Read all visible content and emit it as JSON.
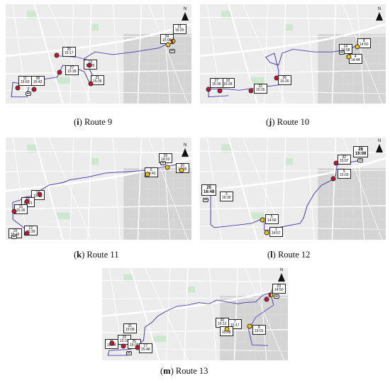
{
  "colors": {
    "route": "#4a3ab3",
    "red_stop": "#c8102e",
    "yellow_stop": "#f2c400",
    "map_bg": "#ececec",
    "road": "#ffffff",
    "dense": "#d3d3d3",
    "green": "#cde8cf"
  },
  "north_label": "N",
  "panels": [
    {
      "id": "route9",
      "caption_letter": "i",
      "caption_text": "Route 9",
      "labels": [
        {
          "id": "a",
          "line1": "21",
          "line2": "15:25",
          "big": false
        },
        {
          "id": "b",
          "line1": "24",
          "line2": "15:08",
          "big": false
        },
        {
          "id": "c",
          "line1": "25",
          "line2": "15:17",
          "big": false
        },
        {
          "id": "d",
          "line1": "13",
          "line2": "15:29",
          "big": false
        },
        {
          "id": "e",
          "line1": "27",
          "line2": "15:39",
          "big": false
        },
        {
          "id": "f",
          "line1": "21",
          "line2": "15:35",
          "big": false
        },
        {
          "id": "g",
          "line1": "28",
          "line2": "15:42",
          "big": false
        },
        {
          "id": "h",
          "line1": "11",
          "line2": "15:50",
          "big": false
        }
      ]
    },
    {
      "id": "route10",
      "caption_letter": "j",
      "caption_text": "Route 10",
      "labels": [
        {
          "id": "a",
          "line1": "14",
          "line2": "14:58",
          "big": false
        },
        {
          "id": "b",
          "line1": "8",
          "line2": "14:50",
          "big": false
        },
        {
          "id": "c",
          "line1": "4",
          "line2": "14:44",
          "big": false
        },
        {
          "id": "d",
          "line1": "26",
          "line2": "15:20",
          "big": false
        },
        {
          "id": "e",
          "line1": "22",
          "line2": "15:15",
          "big": false
        },
        {
          "id": "f",
          "line1": "18",
          "line2": "15:28",
          "big": false
        },
        {
          "id": "g",
          "line1": "27",
          "line2": "15:35",
          "big": false
        }
      ]
    },
    {
      "id": "route11",
      "caption_letter": "k",
      "caption_text": "Route 11",
      "labels": [
        {
          "id": "a",
          "line1": "29",
          "line2": "14:53",
          "big": false
        },
        {
          "id": "b",
          "line1": "6",
          "line2": "14:41",
          "big": false
        },
        {
          "id": "c",
          "line1": "20",
          "line2": "14:35",
          "big": false
        },
        {
          "id": "d",
          "line1": "10",
          "line2": "15:13",
          "big": false
        },
        {
          "id": "e",
          "line1": "16",
          "line2": "15:21",
          "big": false
        },
        {
          "id": "f",
          "line1": "15",
          "line2": "15:26",
          "big": false
        },
        {
          "id": "g",
          "line1": "12",
          "line2": "15:39",
          "big": false
        },
        {
          "id": "h",
          "line1": "19",
          "line2": "15:46",
          "big": false
        }
      ]
    },
    {
      "id": "route12",
      "caption_letter": "l",
      "caption_text": "Route 12",
      "labels": [
        {
          "id": "a",
          "line1": "28",
          "line2": "16:08",
          "big": true
        },
        {
          "id": "b",
          "line1": "32",
          "line2": "15:07",
          "big": false
        },
        {
          "id": "c",
          "line1": "9",
          "line2": "15:03",
          "big": false
        },
        {
          "id": "d",
          "line1": "25",
          "line2": "16:48",
          "big": true
        },
        {
          "id": "e",
          "line1": "3",
          "line2": "16:30",
          "big": false
        },
        {
          "id": "f",
          "line1": "5",
          "line2": "14:56",
          "big": false
        },
        {
          "id": "g",
          "line1": "1",
          "line2": "14:57",
          "big": false
        }
      ]
    },
    {
      "id": "route13",
      "caption_letter": "m",
      "caption_text": "Route 13",
      "labels": [
        {
          "id": "a",
          "line1": "23",
          "line2": "14:50",
          "big": false
        },
        {
          "id": "b",
          "line1": "7",
          "line2": "15:17",
          "big": false
        },
        {
          "id": "c",
          "line1": "30",
          "line2": "15:12",
          "big": false
        },
        {
          "id": "d",
          "line1": "2",
          "line2": "15:08",
          "big": false
        },
        {
          "id": "e",
          "line1": "8",
          "line2": "15:01",
          "big": false
        },
        {
          "id": "f",
          "line1": "31",
          "line2": "15:09",
          "big": false
        },
        {
          "id": "g",
          "line1": "33",
          "line2": "15:29",
          "big": false
        },
        {
          "id": "h",
          "line1": "25",
          "line2": "15:39",
          "big": false
        },
        {
          "id": "i",
          "line1": "26",
          "line2": "15:44",
          "big": false
        },
        {
          "id": "j",
          "line1": "17",
          "line2": "15:48",
          "big": false
        }
      ]
    }
  ]
}
